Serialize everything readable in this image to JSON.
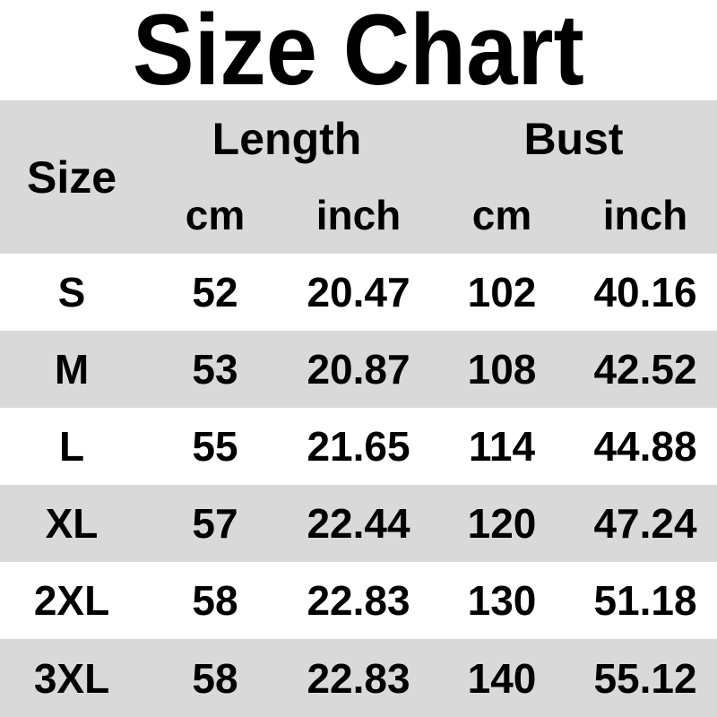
{
  "title": "Size Chart",
  "colors": {
    "band_gray": "#d9d9d9",
    "row_white": "#ffffff",
    "text": "#000000"
  },
  "table": {
    "headers": {
      "size": "Size",
      "length": "Length",
      "bust": "Bust"
    },
    "sub_headers": [
      "cm",
      "inch",
      "cm",
      "inch"
    ],
    "rows": [
      {
        "size": "S",
        "length_cm": "52",
        "length_inch": "20.47",
        "bust_cm": "102",
        "bust_inch": "40.16"
      },
      {
        "size": "M",
        "length_cm": "53",
        "length_inch": "20.87",
        "bust_cm": "108",
        "bust_inch": "42.52"
      },
      {
        "size": "L",
        "length_cm": "55",
        "length_inch": "21.65",
        "bust_cm": "114",
        "bust_inch": "44.88"
      },
      {
        "size": "XL",
        "length_cm": "57",
        "length_inch": "22.44",
        "bust_cm": "120",
        "bust_inch": "47.24"
      },
      {
        "size": "2XL",
        "length_cm": "58",
        "length_inch": "22.83",
        "bust_cm": "130",
        "bust_inch": "51.18"
      },
      {
        "size": "3XL",
        "length_cm": "58",
        "length_inch": "22.83",
        "bust_cm": "140",
        "bust_inch": "55.12"
      }
    ]
  },
  "chart_data": {
    "type": "table",
    "title": "Size Chart",
    "column_groups": [
      "Size",
      "Length",
      "Bust"
    ],
    "columns": [
      "Size",
      "Length cm",
      "Length inch",
      "Bust cm",
      "Bust inch"
    ],
    "rows": [
      [
        "S",
        52,
        20.47,
        102,
        40.16
      ],
      [
        "M",
        53,
        20.87,
        108,
        42.52
      ],
      [
        "L",
        55,
        21.65,
        114,
        44.88
      ],
      [
        "XL",
        57,
        22.44,
        120,
        47.24
      ],
      [
        "2XL",
        58,
        22.83,
        130,
        51.18
      ],
      [
        "3XL",
        58,
        22.83,
        140,
        55.12
      ]
    ],
    "layout": {
      "header_background": "#d9d9d9",
      "row_banding": [
        "#ffffff",
        "#d9d9d9"
      ],
      "grid": false
    }
  }
}
